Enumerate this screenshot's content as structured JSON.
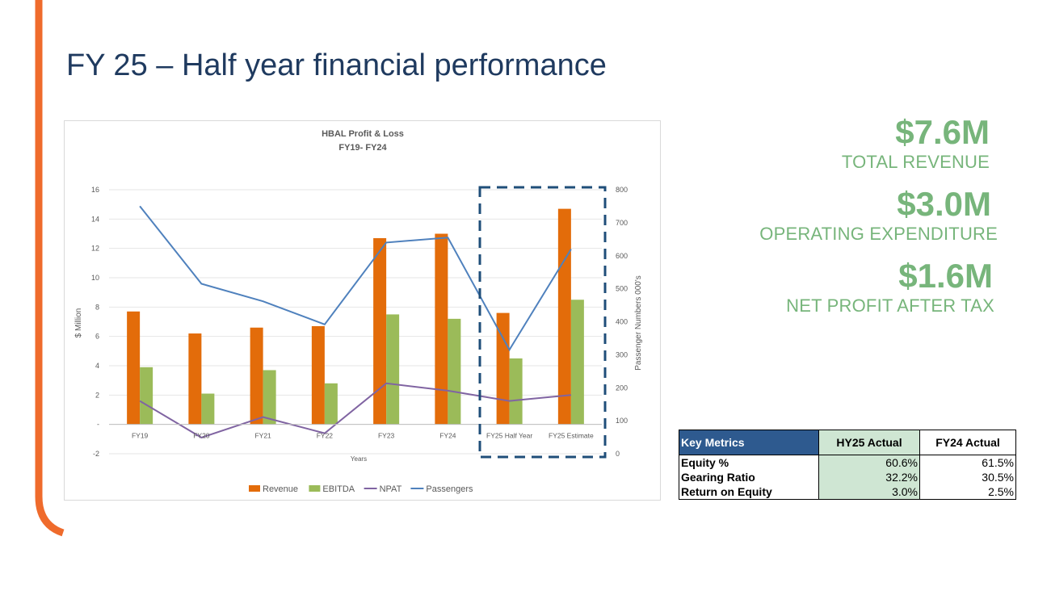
{
  "slide": {
    "title": "FY 25 – Half year financial performance",
    "accent_color": "#ef6b2c"
  },
  "stats": [
    {
      "value": "$7.6M",
      "label": "TOTAL REVENUE"
    },
    {
      "value": "$3.0M",
      "label": "OPERATING EXPENDITURE"
    },
    {
      "value": "$1.6M",
      "label": "NET PROFIT AFTER TAX"
    }
  ],
  "key_metrics": {
    "headers": [
      "Key Metrics",
      "HY25 Actual",
      "FY24 Actual"
    ],
    "rows": [
      [
        "Equity %",
        "60.6%",
        "61.5%"
      ],
      [
        "Gearing Ratio",
        "32.2%",
        "30.5%"
      ],
      [
        "Return on Equity",
        "3.0%",
        "2.5%"
      ]
    ]
  },
  "chart_data": {
    "type": "bar",
    "title": "HBAL Profit & Loss",
    "subtitle": "FY19- FY24",
    "xlabel": "Years",
    "ylabel": "$ Million",
    "y2label": "Passenger Numbers  000's",
    "categories": [
      "FY19",
      "FY20",
      "FY21",
      "FY22",
      "FY23",
      "FY24",
      "FY25 Half Year",
      "FY25 Estimate"
    ],
    "ylim": [
      -2,
      16
    ],
    "y_ticks": [
      "-2",
      "-",
      "2",
      "4",
      "6",
      "8",
      "10",
      "12",
      "14",
      "16"
    ],
    "y2lim": [
      0,
      800
    ],
    "y2_ticks": [
      "0",
      "100",
      "200",
      "300",
      "400",
      "500",
      "600",
      "700",
      "800"
    ],
    "grid": true,
    "legend_position": "bottom",
    "highlight_categories": [
      "FY25 Half Year",
      "FY25 Estimate"
    ],
    "series": [
      {
        "name": "Revenue",
        "type": "bar",
        "axis": "left",
        "color": "#e36c0a",
        "values": [
          7.7,
          6.2,
          6.6,
          6.7,
          12.7,
          13.0,
          7.6,
          14.7
        ]
      },
      {
        "name": "EBITDA",
        "type": "bar",
        "axis": "left",
        "color": "#9bbb59",
        "values": [
          3.9,
          2.1,
          3.7,
          2.8,
          7.5,
          7.2,
          4.5,
          8.5
        ]
      },
      {
        "name": "NPAT",
        "type": "line",
        "axis": "left",
        "color": "#8064a2",
        "values": [
          1.6,
          -0.9,
          0.5,
          -0.6,
          2.8,
          2.3,
          1.6,
          2.0
        ]
      },
      {
        "name": "Passengers",
        "type": "line",
        "axis": "right",
        "color": "#4f81bd",
        "values": [
          750,
          515,
          462,
          392,
          640,
          655,
          315,
          620
        ]
      }
    ]
  }
}
